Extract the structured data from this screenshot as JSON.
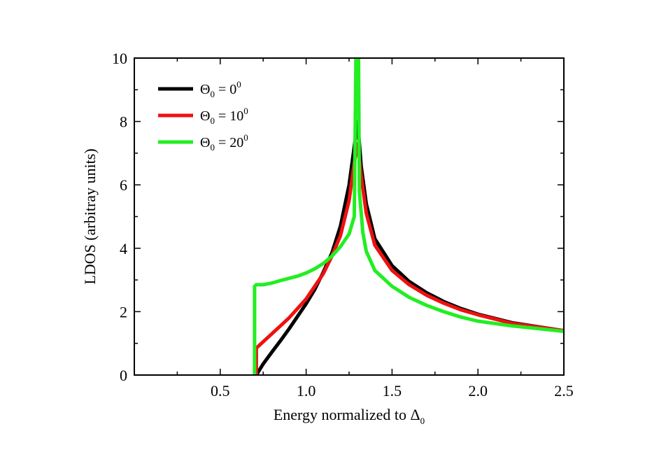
{
  "chart_data": {
    "type": "line",
    "title": "",
    "xlabel": "Energy normalized to Δ",
    "xlabel_sub": "0",
    "ylabel": "LDOS (arbitray units)",
    "xlim": [
      0,
      2.5
    ],
    "ylim": [
      0,
      10
    ],
    "xticks": [
      0.5,
      1.0,
      1.5,
      2.0,
      2.5
    ],
    "xtick_labels": [
      "0.5",
      "1.0",
      "1.5",
      "2.0",
      "2.5"
    ],
    "xminor": [
      0.25,
      0.75,
      1.25,
      1.75,
      2.25
    ],
    "yticks": [
      0,
      2,
      4,
      6,
      8,
      10
    ],
    "ytick_labels": [
      "0",
      "2",
      "4",
      "6",
      "8",
      "10"
    ],
    "yminor": [
      1,
      3,
      5,
      7,
      9
    ],
    "grid": false,
    "legend_position": "top-left",
    "series": [
      {
        "name": "Θ0 = 0°",
        "label_main": "Θ",
        "label_sub": "0",
        "label_mid": " = 0",
        "label_sup": "0",
        "color": "#000000",
        "x": [
          0.71,
          0.75,
          0.8,
          0.85,
          0.9,
          0.95,
          1.0,
          1.05,
          1.1,
          1.15,
          1.2,
          1.25,
          1.28,
          1.3,
          1.32,
          1.35,
          1.4,
          1.5,
          1.6,
          1.7,
          1.8,
          1.9,
          2.0,
          2.2,
          2.5
        ],
        "y": [
          0.0,
          0.35,
          0.72,
          1.08,
          1.45,
          1.85,
          2.25,
          2.7,
          3.25,
          3.85,
          4.7,
          6.0,
          7.2,
          8.0,
          6.6,
          5.4,
          4.3,
          3.45,
          2.95,
          2.6,
          2.32,
          2.1,
          1.92,
          1.65,
          1.4
        ]
      },
      {
        "name": "Θ0 = 10°",
        "label_main": "Θ",
        "label_sub": "0",
        "label_mid": " = 10",
        "label_sup": "0",
        "color": "#ee1111",
        "x": [
          0.71,
          0.71,
          0.75,
          0.8,
          0.85,
          0.9,
          0.95,
          1.0,
          1.05,
          1.1,
          1.15,
          1.2,
          1.25,
          1.28,
          1.3,
          1.32,
          1.35,
          1.4,
          1.5,
          1.6,
          1.7,
          1.8,
          1.9,
          2.0,
          2.2,
          2.5
        ],
        "y": [
          0.0,
          0.85,
          1.05,
          1.3,
          1.55,
          1.8,
          2.1,
          2.4,
          2.8,
          3.2,
          3.75,
          4.4,
          5.5,
          6.7,
          7.3,
          6.3,
          5.1,
          4.1,
          3.3,
          2.85,
          2.52,
          2.27,
          2.06,
          1.9,
          1.63,
          1.4
        ]
      },
      {
        "name": "Θ0 = 20°",
        "label_main": "Θ",
        "label_sub": "0",
        "label_mid": " = 20",
        "label_sup": "0",
        "color": "#22ee22",
        "x": [
          0.7,
          0.7,
          0.71,
          0.75,
          0.8,
          0.85,
          0.9,
          0.95,
          1.0,
          1.05,
          1.1,
          1.15,
          1.2,
          1.25,
          1.28,
          1.29,
          1.295,
          1.3,
          1.305,
          1.31,
          1.33,
          1.35,
          1.4,
          1.5,
          1.6,
          1.7,
          1.8,
          1.9,
          2.0,
          2.2,
          2.5
        ],
        "y": [
          0.0,
          2.8,
          2.85,
          2.85,
          2.9,
          2.98,
          3.05,
          3.12,
          3.22,
          3.35,
          3.52,
          3.75,
          4.05,
          4.45,
          5.0,
          10.0,
          10.0,
          10.0,
          10.0,
          5.8,
          4.5,
          3.9,
          3.3,
          2.8,
          2.45,
          2.2,
          2.0,
          1.83,
          1.7,
          1.55,
          1.38
        ]
      }
    ]
  }
}
